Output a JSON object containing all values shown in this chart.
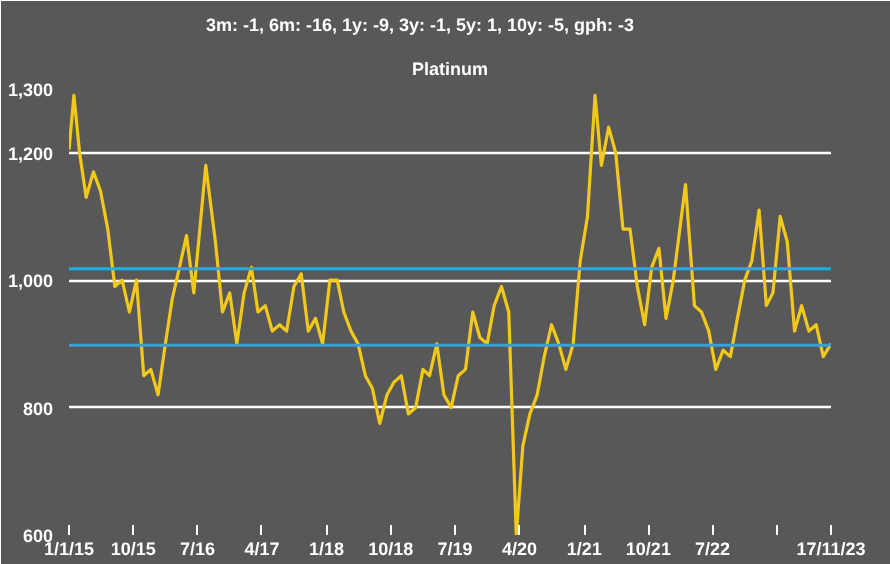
{
  "chart_data": {
    "type": "line",
    "title": "Platinum",
    "subtitle": "3m: -1,   6m: -16,   1y: -9,   3y: -1,   5y: 1,   10y: -5,   gph: -3",
    "x": [
      "2015-01-01",
      "2015-01-22",
      "2015-02-15",
      "2015-03-15",
      "2015-04-15",
      "2015-05-15",
      "2015-06-15",
      "2015-07-15",
      "2015-08-15",
      "2015-09-15",
      "2015-10-15",
      "2015-11-15",
      "2015-12-15",
      "2016-01-15",
      "2016-02-15",
      "2016-03-15",
      "2016-04-15",
      "2016-05-15",
      "2016-06-15",
      "2016-08-05",
      "2016-09-15",
      "2016-10-15",
      "2016-11-15",
      "2016-12-15",
      "2017-01-15",
      "2017-02-15",
      "2017-03-15",
      "2017-04-15",
      "2017-05-15",
      "2017-06-15",
      "2017-07-15",
      "2017-08-15",
      "2017-09-15",
      "2017-10-15",
      "2017-11-15",
      "2017-12-15",
      "2018-01-15",
      "2018-02-15",
      "2018-03-15",
      "2018-04-15",
      "2018-05-15",
      "2018-06-15",
      "2018-07-15",
      "2018-08-15",
      "2018-09-15",
      "2018-10-15",
      "2018-11-15",
      "2018-12-15",
      "2019-01-15",
      "2019-02-15",
      "2019-03-15",
      "2019-04-15",
      "2019-05-15",
      "2019-06-15",
      "2019-07-15",
      "2019-08-15",
      "2019-09-15",
      "2019-10-15",
      "2019-11-15",
      "2019-12-15",
      "2020-01-15",
      "2020-02-15",
      "2020-03-18",
      "2020-04-15",
      "2020-05-15",
      "2020-06-15",
      "2020-07-15",
      "2020-08-15",
      "2020-09-15",
      "2020-10-15",
      "2020-11-15",
      "2020-12-15",
      "2021-01-15",
      "2021-02-16",
      "2021-03-15",
      "2021-04-15",
      "2021-05-15",
      "2021-06-15",
      "2021-07-15",
      "2021-08-15",
      "2021-09-15",
      "2021-10-15",
      "2021-11-15",
      "2021-12-15",
      "2022-01-15",
      "2022-03-08",
      "2022-04-15",
      "2022-05-15",
      "2022-06-15",
      "2022-07-15",
      "2022-08-15",
      "2022-09-15",
      "2022-10-15",
      "2022-11-15",
      "2022-12-15",
      "2023-01-15",
      "2023-02-15",
      "2023-03-15",
      "2023-04-15",
      "2023-05-15",
      "2023-06-15",
      "2023-07-15",
      "2023-08-15",
      "2023-09-15",
      "2023-10-15",
      "2023-11-17"
    ],
    "series": [
      {
        "color": "#f2c81a",
        "values": [
          1205,
          1290,
          1200,
          1130,
          1170,
          1140,
          1080,
          990,
          1000,
          950,
          1000,
          850,
          860,
          820,
          900,
          970,
          1020,
          1070,
          980,
          1180,
          1060,
          950,
          980,
          900,
          980,
          1020,
          950,
          960,
          920,
          930,
          920,
          990,
          1010,
          920,
          940,
          900,
          1000,
          1000,
          950,
          920,
          900,
          850,
          830,
          775,
          820,
          840,
          850,
          790,
          800,
          860,
          850,
          900,
          820,
          800,
          850,
          860,
          950,
          910,
          900,
          960,
          990,
          950,
          600,
          740,
          790,
          820,
          880,
          930,
          900,
          860,
          900,
          1030,
          1100,
          1290,
          1180,
          1240,
          1200,
          1080,
          1080,
          990,
          930,
          1020,
          1050,
          940,
          1000,
          1150,
          960,
          950,
          920,
          860,
          890,
          880,
          940,
          1000,
          1030,
          1110,
          960,
          980,
          1100,
          1060,
          920,
          960,
          920,
          930,
          880,
          900
        ]
      }
    ],
    "xlim": [
      "2015-01-01",
      "2023-11-17"
    ],
    "xticks": [
      {
        "value": "2015-01-01",
        "label": "1/1/15"
      },
      {
        "value": "2015-10-01",
        "label": "10/15"
      },
      {
        "value": "2016-07-01",
        "label": "7/16"
      },
      {
        "value": "2017-04-01",
        "label": "4/17"
      },
      {
        "value": "2018-01-01",
        "label": "1/18"
      },
      {
        "value": "2018-10-01",
        "label": "10/18"
      },
      {
        "value": "2019-07-01",
        "label": "7/19"
      },
      {
        "value": "2020-04-01",
        "label": "4/20"
      },
      {
        "value": "2021-01-01",
        "label": "1/21"
      },
      {
        "value": "2021-10-01",
        "label": "10/21"
      },
      {
        "value": "2022-07-01",
        "label": "7/22"
      },
      {
        "value": "2023-04-01",
        "label": null
      },
      {
        "value": "2023-11-17",
        "label": "17/11/23"
      }
    ],
    "ylim": [
      600,
      1300
    ],
    "yticks": [
      {
        "value": 600,
        "label": "600"
      },
      {
        "value": 800,
        "label": "800"
      },
      {
        "value": 1000,
        "label": "1,000"
      },
      {
        "value": 1200,
        "label": "1,200"
      },
      {
        "value": 1300,
        "label": "1,300"
      }
    ],
    "grid": "y",
    "ref_lines": [
      {
        "axis": "y",
        "value": 1018,
        "color": "#1fb0e0"
      },
      {
        "axis": "y",
        "value": 898,
        "color": "#3a9fd6"
      }
    ]
  }
}
